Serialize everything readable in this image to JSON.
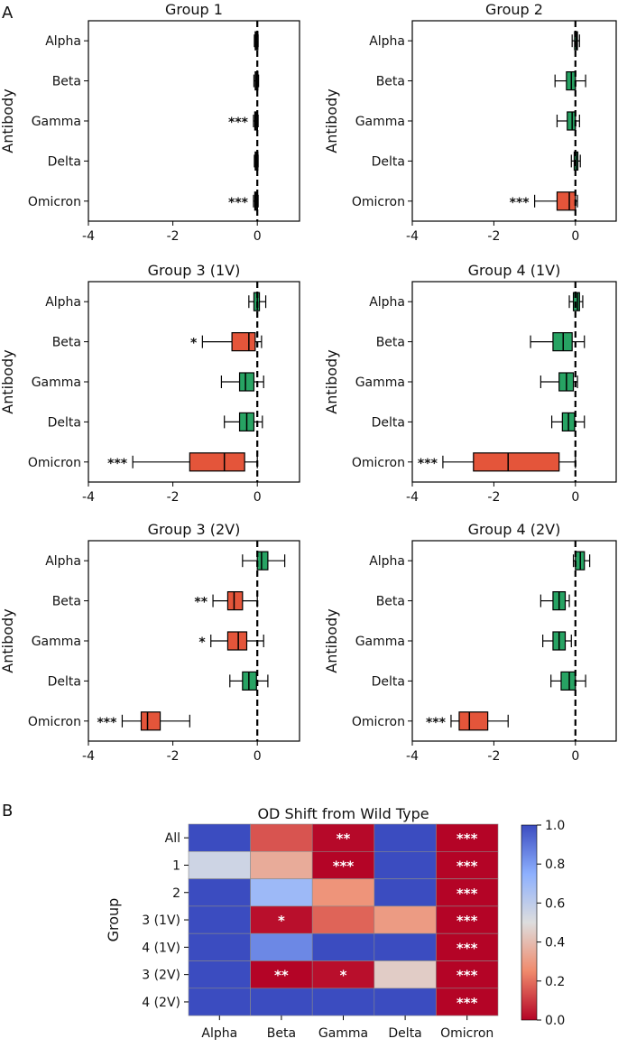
{
  "panel_labels": [
    "A",
    "B"
  ],
  "chart_data": [
    {
      "type": "box",
      "title": "Group 1",
      "ylabel": "Antibody",
      "xlim": [
        -4,
        1
      ],
      "xticks": [
        -4,
        -2,
        0
      ],
      "xtick_labels": [
        "-4",
        "-2",
        "0"
      ],
      "categories": [
        "Alpha",
        "Beta",
        "Gamma",
        "Delta",
        "Omicron"
      ],
      "boxes": [
        {
          "min": -0.07,
          "q1": -0.05,
          "median": -0.02,
          "q3": 0.0,
          "max": 0.02,
          "color": "#1a1a1a",
          "sig": ""
        },
        {
          "min": -0.08,
          "q1": -0.05,
          "median": -0.02,
          "q3": 0.0,
          "max": 0.03,
          "color": "#1a1a1a",
          "sig": ""
        },
        {
          "min": -0.09,
          "q1": -0.06,
          "median": -0.03,
          "q3": 0.0,
          "max": 0.02,
          "color": "#1a1a1a",
          "sig": "***"
        },
        {
          "min": -0.07,
          "q1": -0.05,
          "median": -0.02,
          "q3": 0.0,
          "max": 0.02,
          "color": "#1a1a1a",
          "sig": ""
        },
        {
          "min": -0.09,
          "q1": -0.06,
          "median": -0.03,
          "q3": 0.0,
          "max": 0.02,
          "color": "#1a1a1a",
          "sig": "***"
        }
      ]
    },
    {
      "type": "box",
      "title": "Group 2",
      "ylabel": "Antibody",
      "xlim": [
        -4,
        1
      ],
      "xticks": [
        -4,
        -2,
        0
      ],
      "xtick_labels": [
        "-4",
        "-2",
        "0"
      ],
      "categories": [
        "Alpha",
        "Beta",
        "Gamma",
        "Delta",
        "Omicron"
      ],
      "boxes": [
        {
          "min": -0.08,
          "q1": -0.02,
          "median": 0.02,
          "q3": 0.05,
          "max": 0.1,
          "color": "#27a363",
          "sig": ""
        },
        {
          "min": -0.5,
          "q1": -0.22,
          "median": -0.1,
          "q3": 0.0,
          "max": 0.25,
          "color": "#27a363",
          "sig": ""
        },
        {
          "min": -0.45,
          "q1": -0.2,
          "median": -0.08,
          "q3": 0.0,
          "max": 0.1,
          "color": "#27a363",
          "sig": ""
        },
        {
          "min": -0.1,
          "q1": -0.03,
          "median": 0.02,
          "q3": 0.06,
          "max": 0.12,
          "color": "#27a363",
          "sig": ""
        },
        {
          "min": -1.0,
          "q1": -0.45,
          "median": -0.15,
          "q3": 0.0,
          "max": 0.05,
          "color": "#e4553a",
          "sig": "***"
        }
      ]
    },
    {
      "type": "box",
      "title": "Group 3 (1V)",
      "ylabel": "Antibody",
      "xlim": [
        -4,
        1
      ],
      "xticks": [
        -4,
        -2,
        0
      ],
      "xtick_labels": [
        "-4",
        "-2",
        "0"
      ],
      "categories": [
        "Alpha",
        "Beta",
        "Gamma",
        "Delta",
        "Omicron"
      ],
      "boxes": [
        {
          "min": -0.2,
          "q1": -0.08,
          "median": 0.0,
          "q3": 0.05,
          "max": 0.2,
          "color": "#27a363",
          "sig": ""
        },
        {
          "min": -1.3,
          "q1": -0.6,
          "median": -0.2,
          "q3": -0.05,
          "max": 0.1,
          "color": "#e4553a",
          "sig": "*"
        },
        {
          "min": -0.85,
          "q1": -0.42,
          "median": -0.28,
          "q3": -0.08,
          "max": 0.15,
          "color": "#27a363",
          "sig": ""
        },
        {
          "min": -0.78,
          "q1": -0.42,
          "median": -0.25,
          "q3": -0.08,
          "max": 0.12,
          "color": "#27a363",
          "sig": ""
        },
        {
          "min": -2.95,
          "q1": -1.6,
          "median": -0.78,
          "q3": -0.3,
          "max": 0.0,
          "color": "#e4553a",
          "sig": "***"
        }
      ]
    },
    {
      "type": "box",
      "title": "Group 4 (1V)",
      "ylabel": "Antibody",
      "xlim": [
        -4,
        1
      ],
      "xticks": [
        -4,
        -2,
        0
      ],
      "xtick_labels": [
        "-4",
        "-2",
        "0"
      ],
      "categories": [
        "Alpha",
        "Beta",
        "Gamma",
        "Delta",
        "Omicron"
      ],
      "boxes": [
        {
          "min": -0.15,
          "q1": -0.05,
          "median": 0.05,
          "q3": 0.1,
          "max": 0.18,
          "color": "#27a363",
          "sig": ""
        },
        {
          "min": -1.1,
          "q1": -0.55,
          "median": -0.3,
          "q3": -0.08,
          "max": 0.22,
          "color": "#27a363",
          "sig": ""
        },
        {
          "min": -0.85,
          "q1": -0.4,
          "median": -0.22,
          "q3": -0.05,
          "max": 0.05,
          "color": "#27a363",
          "sig": ""
        },
        {
          "min": -0.58,
          "q1": -0.32,
          "median": -0.17,
          "q3": -0.02,
          "max": 0.22,
          "color": "#27a363",
          "sig": ""
        },
        {
          "min": -3.25,
          "q1": -2.5,
          "median": -1.65,
          "q3": -0.4,
          "max": 0.0,
          "color": "#e4553a",
          "sig": "***"
        }
      ]
    },
    {
      "type": "box",
      "title": "Group 3 (2V)",
      "ylabel": "Antibody",
      "xlim": [
        -4,
        1
      ],
      "xticks": [
        -4,
        -2,
        0
      ],
      "xtick_labels": [
        "-4",
        "-2",
        "0"
      ],
      "categories": [
        "Alpha",
        "Beta",
        "Gamma",
        "Delta",
        "Omicron"
      ],
      "boxes": [
        {
          "min": -0.35,
          "q1": 0.0,
          "median": 0.1,
          "q3": 0.25,
          "max": 0.65,
          "color": "#27a363",
          "sig": ""
        },
        {
          "min": -1.05,
          "q1": -0.7,
          "median": -0.55,
          "q3": -0.35,
          "max": 0.0,
          "color": "#e4553a",
          "sig": "**"
        },
        {
          "min": -1.1,
          "q1": -0.7,
          "median": -0.45,
          "q3": -0.25,
          "max": 0.15,
          "color": "#e4553a",
          "sig": "*"
        },
        {
          "min": -0.65,
          "q1": -0.35,
          "median": -0.2,
          "q3": -0.02,
          "max": 0.25,
          "color": "#27a363",
          "sig": ""
        },
        {
          "min": -3.2,
          "q1": -2.75,
          "median": -2.6,
          "q3": -2.3,
          "max": -1.6,
          "color": "#e4553a",
          "sig": "***"
        }
      ]
    },
    {
      "type": "box",
      "title": "Group 4 (2V)",
      "ylabel": "Antibody",
      "xlim": [
        -4,
        1
      ],
      "xticks": [
        -4,
        -2,
        0
      ],
      "xtick_labels": [
        "-4",
        "-2",
        "0"
      ],
      "categories": [
        "Alpha",
        "Beta",
        "Gamma",
        "Delta",
        "Omicron"
      ],
      "boxes": [
        {
          "min": -0.05,
          "q1": 0.0,
          "median": 0.12,
          "q3": 0.22,
          "max": 0.35,
          "color": "#27a363",
          "sig": ""
        },
        {
          "min": -0.85,
          "q1": -0.55,
          "median": -0.4,
          "q3": -0.25,
          "max": -0.15,
          "color": "#27a363",
          "sig": ""
        },
        {
          "min": -0.8,
          "q1": -0.55,
          "median": -0.4,
          "q3": -0.25,
          "max": -0.1,
          "color": "#27a363",
          "sig": ""
        },
        {
          "min": -0.6,
          "q1": -0.35,
          "median": -0.15,
          "q3": 0.0,
          "max": 0.25,
          "color": "#27a363",
          "sig": ""
        },
        {
          "min": -3.05,
          "q1": -2.85,
          "median": -2.6,
          "q3": -2.15,
          "max": -1.65,
          "color": "#e4553a",
          "sig": "***"
        }
      ]
    },
    {
      "type": "heatmap",
      "title": "OD Shift from Wild Type",
      "ylabel": "Group",
      "x_categories": [
        "Alpha",
        "Beta",
        "Gamma",
        "Delta",
        "Omicron"
      ],
      "y_categories": [
        "All",
        "1",
        "2",
        "3 (1V)",
        "4 (1V)",
        "3 (2V)",
        "4 (2V)"
      ],
      "values": [
        [
          1.0,
          0.15,
          0.01,
          1.0,
          0.0
        ],
        [
          0.55,
          0.35,
          0.0,
          1.0,
          0.0
        ],
        [
          1.0,
          0.7,
          0.28,
          1.0,
          0.0
        ],
        [
          1.0,
          0.02,
          0.18,
          0.3,
          0.0
        ],
        [
          1.0,
          0.85,
          1.0,
          1.0,
          0.0
        ],
        [
          1.0,
          0.0,
          0.02,
          0.45,
          0.0
        ],
        [
          1.0,
          1.0,
          1.0,
          1.0,
          0.0
        ]
      ],
      "annotations": [
        [
          "",
          "",
          "**",
          "",
          "***"
        ],
        [
          "",
          "",
          "***",
          "",
          "***"
        ],
        [
          "",
          "",
          "",
          "",
          "***"
        ],
        [
          "",
          "*",
          "",
          "",
          "***"
        ],
        [
          "",
          "",
          "",
          "",
          "***"
        ],
        [
          "",
          "**",
          "*",
          "",
          "***"
        ],
        [
          "",
          "",
          "",
          "",
          "***"
        ]
      ],
      "colorbar": {
        "range": [
          0.0,
          1.0
        ],
        "ticks": [
          0.0,
          0.2,
          0.4,
          0.6,
          0.8,
          1.0
        ],
        "tick_labels": [
          "0.0",
          "0.2",
          "0.4",
          "0.6",
          "0.8",
          "1.0"
        ],
        "low_color": "#b40426",
        "mid_color": "#dddddd",
        "high_color": "#3b4cc0"
      }
    }
  ]
}
